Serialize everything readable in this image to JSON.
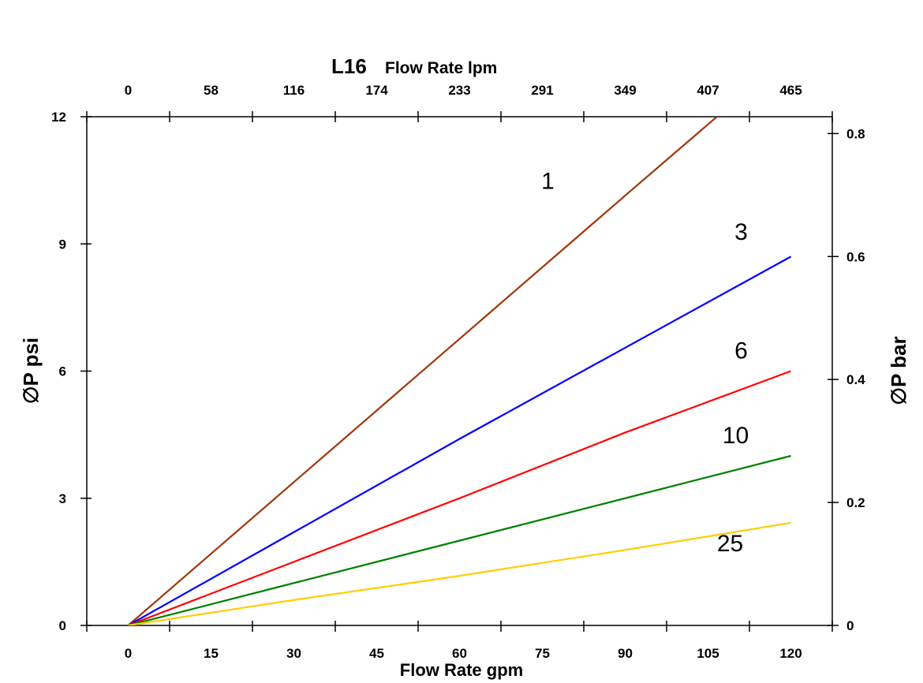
{
  "chart_data": {
    "type": "line",
    "title_prefix": "L16",
    "top_xlabel": "Flow Rate lpm",
    "xlabel": "Flow Rate gpm",
    "ylabel": "∅P psi",
    "y2label": "∅P bar",
    "xlim": [
      -7.5,
      127.5
    ],
    "ylim": [
      0,
      12
    ],
    "y2lim": [
      0,
      0.8
    ],
    "x_ticks": [
      "0",
      "15",
      "30",
      "45",
      "60",
      "75",
      "90",
      "105",
      "120"
    ],
    "top_x_ticks": [
      "0",
      "58",
      "116",
      "174",
      "233",
      "291",
      "349",
      "407",
      "465"
    ],
    "y_ticks": [
      "0",
      "3",
      "6",
      "9",
      "12"
    ],
    "y2_ticks": [
      "0",
      "0.2",
      "0.4",
      "0.6",
      "0.8"
    ],
    "grid": false,
    "series": [
      {
        "name": "1",
        "color": "#a0360a",
        "x": [
          0,
          30,
          60,
          90,
          120
        ],
        "y": [
          0,
          3.38,
          6.76,
          10.14,
          13.5
        ]
      },
      {
        "name": "3",
        "color": "#0000ff",
        "x": [
          0,
          30,
          60,
          90,
          120
        ],
        "y": [
          0,
          2.2,
          4.4,
          6.55,
          8.7
        ]
      },
      {
        "name": "6",
        "color": "#ff0000",
        "x": [
          0,
          30,
          60,
          90,
          120
        ],
        "y": [
          0,
          1.5,
          3.0,
          4.55,
          6.0
        ]
      },
      {
        "name": "10",
        "color": "#008000",
        "x": [
          0,
          30,
          60,
          90,
          120
        ],
        "y": [
          0,
          1.0,
          2.0,
          3.0,
          4.0
        ]
      },
      {
        "name": "25",
        "color": "#ffcc00",
        "x": [
          0,
          30,
          60,
          90,
          120
        ],
        "y": [
          0,
          0.6,
          1.17,
          1.78,
          2.42
        ]
      }
    ],
    "annotations": [
      {
        "text": "1",
        "x": 76,
        "y": 10.3
      },
      {
        "text": "3",
        "x": 111,
        "y": 9.1
      },
      {
        "text": "6",
        "x": 111,
        "y": 6.3
      },
      {
        "text": "10",
        "x": 110,
        "y": 4.3
      },
      {
        "text": "25",
        "x": 109,
        "y": 1.75
      }
    ]
  }
}
